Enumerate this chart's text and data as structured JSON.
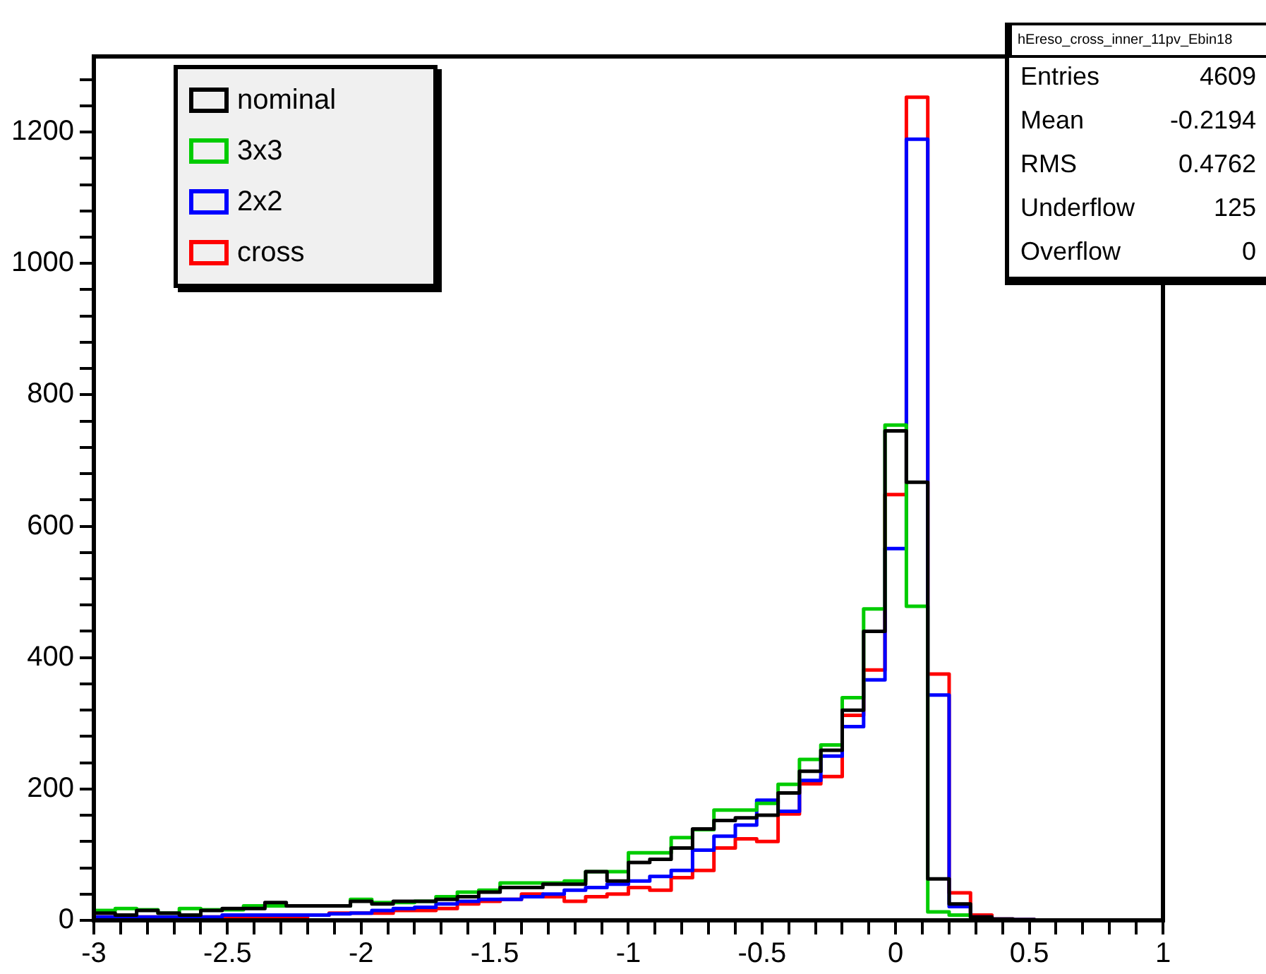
{
  "chart_data": {
    "type": "histogram",
    "bins": [
      -3,
      -2.92,
      -2.84,
      -2.76,
      -2.68,
      -2.6,
      -2.52,
      -2.44,
      -2.36,
      -2.28,
      -2.2,
      -2.12,
      -2.04,
      -1.96,
      -1.88,
      -1.8,
      -1.72,
      -1.64,
      -1.56,
      -1.48,
      -1.4,
      -1.32,
      -1.24,
      -1.16,
      -1.08,
      -1,
      -0.92,
      -0.84,
      -0.76,
      -0.68,
      -0.6,
      -0.52,
      -0.44,
      -0.36,
      -0.28,
      -0.2,
      -0.12,
      -0.04,
      0.04,
      0.12,
      0.2,
      0.28,
      0.36,
      0.44,
      0.52,
      0.6,
      0.68,
      0.76,
      0.84,
      0.92,
      1
    ],
    "series": [
      {
        "name": "nominal",
        "color": "#000000",
        "values": [
          11,
          8,
          15,
          11,
          8,
          15,
          18,
          18,
          27,
          22,
          22,
          22,
          29,
          25,
          29,
          29,
          32,
          36,
          43,
          50,
          50,
          55,
          55,
          74,
          60,
          88,
          93,
          110,
          139,
          152,
          156,
          160,
          194,
          227,
          259,
          320,
          440,
          745,
          667,
          63,
          25,
          5,
          2,
          1,
          0,
          0,
          0,
          0,
          0,
          0
        ]
      },
      {
        "name": "3x3",
        "color": "#00cc00",
        "values": [
          15,
          18,
          16,
          11,
          18,
          16,
          16,
          22,
          22,
          22,
          22,
          22,
          32,
          27,
          27,
          29,
          36,
          43,
          46,
          57,
          57,
          57,
          60,
          74,
          74,
          103,
          103,
          126,
          138,
          168,
          168,
          178,
          207,
          245,
          267,
          339,
          474,
          754,
          478,
          13,
          8,
          3,
          1,
          0,
          0,
          0,
          0,
          0,
          0,
          0
        ]
      },
      {
        "name": "2x2",
        "color": "#0000ff",
        "values": [
          5,
          5,
          5,
          5,
          5,
          5,
          8,
          8,
          8,
          8,
          8,
          10,
          11,
          15,
          18,
          20,
          25,
          29,
          32,
          32,
          36,
          40,
          46,
          50,
          55,
          60,
          67,
          76,
          107,
          128,
          145,
          183,
          166,
          213,
          250,
          295,
          366,
          566,
          1189,
          343,
          21,
          5,
          2,
          1,
          0,
          0,
          0,
          0,
          0,
          0
        ]
      },
      {
        "name": "cross",
        "color": "#ff0000",
        "values": [
          5,
          5,
          5,
          5,
          5,
          5,
          5,
          5,
          5,
          5,
          8,
          11,
          11,
          11,
          15,
          15,
          18,
          25,
          29,
          32,
          40,
          36,
          29,
          36,
          40,
          50,
          46,
          65,
          76,
          110,
          124,
          120,
          162,
          208,
          219,
          312,
          381,
          648,
          1253,
          375,
          42,
          8,
          2,
          1,
          0,
          0,
          0,
          0,
          0,
          0
        ]
      }
    ],
    "xlim": [
      -3,
      1
    ],
    "xticks": [
      -3,
      {
        "value": -2.9,
        "label": null
      },
      {
        "value": -2.8,
        "label": null
      },
      {
        "value": -2.7,
        "label": null
      },
      {
        "value": -2.6,
        "label": null
      },
      -2.5,
      {
        "value": -2.4,
        "label": null
      },
      {
        "value": -2.3,
        "label": null
      },
      {
        "value": -2.2,
        "label": null
      },
      {
        "value": -2.1,
        "label": null
      },
      -2,
      {
        "value": -1.9,
        "label": null
      },
      {
        "value": -1.8,
        "label": null
      },
      {
        "value": -1.7,
        "label": null
      },
      {
        "value": -1.6,
        "label": null
      },
      -1.5,
      {
        "value": -1.4,
        "label": null
      },
      {
        "value": -1.3,
        "label": null
      },
      {
        "value": -1.2,
        "label": null
      },
      {
        "value": -1.1,
        "label": null
      },
      -1,
      {
        "value": -0.9,
        "label": null
      },
      {
        "value": -0.8,
        "label": null
      },
      {
        "value": -0.7,
        "label": null
      },
      {
        "value": -0.6,
        "label": null
      },
      -0.5,
      {
        "value": -0.4,
        "label": null
      },
      {
        "value": -0.3,
        "label": null
      },
      {
        "value": -0.2,
        "label": null
      },
      {
        "value": -0.1,
        "label": null
      },
      0,
      {
        "value": 0.1,
        "label": null
      },
      {
        "value": 0.2,
        "label": null
      },
      {
        "value": 0.3,
        "label": null
      },
      {
        "value": 0.4,
        "label": null
      },
      0.5,
      {
        "value": 0.6,
        "label": null
      },
      {
        "value": 0.7,
        "label": null
      },
      {
        "value": 0.8,
        "label": null
      },
      {
        "value": 0.9,
        "label": null
      },
      1
    ],
    "ylim": [
      0,
      1315
    ],
    "yticks": [
      0,
      {
        "value": 40,
        "label": null
      },
      {
        "value": 80,
        "label": null
      },
      {
        "value": 120,
        "label": null
      },
      {
        "value": 160,
        "label": null
      },
      200,
      {
        "value": 240,
        "label": null
      },
      {
        "value": 280,
        "label": null
      },
      {
        "value": 320,
        "label": null
      },
      {
        "value": 360,
        "label": null
      },
      400,
      {
        "value": 440,
        "label": null
      },
      {
        "value": 480,
        "label": null
      },
      {
        "value": 520,
        "label": null
      },
      {
        "value": 560,
        "label": null
      },
      600,
      {
        "value": 640,
        "label": null
      },
      {
        "value": 680,
        "label": null
      },
      {
        "value": 720,
        "label": null
      },
      {
        "value": 760,
        "label": null
      },
      800,
      {
        "value": 840,
        "label": null
      },
      {
        "value": 880,
        "label": null
      },
      {
        "value": 920,
        "label": null
      },
      {
        "value": 960,
        "label": null
      },
      1000,
      {
        "value": 1040,
        "label": null
      },
      {
        "value": 1080,
        "label": null
      },
      {
        "value": 1120,
        "label": null
      },
      {
        "value": 1160,
        "label": null
      },
      1200,
      {
        "value": 1240,
        "label": null
      },
      {
        "value": 1280,
        "label": null
      }
    ],
    "legend": "top left",
    "annotations": [
      "hEreso_cross_inner_11pv_Ebin18",
      "Entries 4609",
      "Mean -0.2194",
      "RMS 0.4762",
      "Underflow 125",
      "Overflow 0"
    ]
  }
}
